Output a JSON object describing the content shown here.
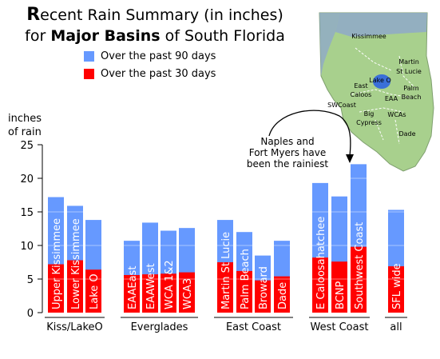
{
  "title": {
    "line1_cap": "R",
    "line1_rest": "ecent Rain Summary (in inches)",
    "line2_pre": "for ",
    "line2_bold": "Major Basins",
    "line2_post": " of South Florida"
  },
  "legend": [
    {
      "label": "Over the past 90 days",
      "color": "#6699ff"
    },
    {
      "label": "Over the past 30 days",
      "color": "#ff0000"
    }
  ],
  "ylabel_line1": "inches",
  "ylabel_line2": "of rain",
  "annotation": {
    "line1": "Naples and",
    "line2": "Fort Myers have",
    "line3": "been the rainiest"
  },
  "map": {
    "labels": [
      "Kissimmee",
      "Martin",
      "St Lucie",
      "Lake O",
      "Palm",
      "Beach",
      "East",
      "Caloos",
      "EAA",
      "SWCoast",
      "Big",
      "Cypress",
      "WCAs",
      "Dade"
    ]
  },
  "chart_data": {
    "type": "bar",
    "ylim": [
      0,
      25
    ],
    "yticks": [
      0,
      5,
      10,
      15,
      20,
      25
    ],
    "grid": true,
    "categories": [
      "Upper Kissimmee",
      "Lower Kissimmee",
      "Lake O",
      "EAAEast",
      "EAAWest",
      "WCA 1&2",
      "WCA3",
      "Martin St Lucie",
      "Palm Beach",
      "Broward",
      "Dade",
      "E Caloosahatchee",
      "BCNP",
      "Southwest Coast",
      "SFL wide"
    ],
    "series": [
      {
        "name": "Over the past 90 days",
        "color": "#6699ff",
        "values": [
          17.2,
          15.9,
          13.8,
          10.7,
          13.4,
          12.2,
          12.6,
          13.8,
          12.0,
          8.5,
          10.7,
          19.3,
          17.3,
          22.1,
          15.3
        ]
      },
      {
        "name": "Over the past 30 days",
        "color": "#ff0000",
        "values": [
          7.2,
          7.8,
          6.4,
          5.6,
          5.7,
          5.8,
          6.0,
          7.5,
          6.2,
          4.8,
          5.4,
          8.2,
          7.6,
          9.8,
          6.9
        ]
      }
    ],
    "groups": [
      {
        "label": "Kiss/LakeO",
        "members": [
          0,
          1,
          2
        ]
      },
      {
        "label": "Everglades",
        "members": [
          3,
          4,
          5,
          6
        ]
      },
      {
        "label": "East Coast",
        "members": [
          7,
          8,
          9,
          10
        ]
      },
      {
        "label": "West Coast",
        "members": [
          11,
          12,
          13
        ]
      },
      {
        "label": "all",
        "members": [
          14
        ]
      }
    ]
  }
}
